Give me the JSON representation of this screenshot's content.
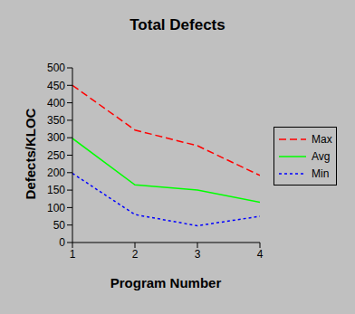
{
  "chart_data": {
    "type": "line",
    "title": "Total Defects",
    "x_label": "Program Number",
    "y_label": "Defects/KLOC",
    "x": [
      1,
      2,
      3,
      4
    ],
    "xlim": [
      1,
      4
    ],
    "xticks": [
      1,
      2,
      3,
      4
    ],
    "ylim": [
      0,
      500
    ],
    "yticks": [
      0,
      50,
      100,
      150,
      200,
      250,
      300,
      350,
      400,
      450,
      500
    ],
    "grid": false,
    "legend": "right",
    "series": [
      {
        "name": "Max",
        "color": "#ff0000",
        "line_style": "dashed",
        "values": [
          450,
          322,
          277,
          192
        ]
      },
      {
        "name": "Avg",
        "color": "#00ff00",
        "line_style": "solid",
        "values": [
          298,
          165,
          150,
          115
        ]
      },
      {
        "name": "Min",
        "color": "#0000ff",
        "line_style": "dotted",
        "values": [
          198,
          80,
          48,
          75
        ]
      }
    ]
  }
}
